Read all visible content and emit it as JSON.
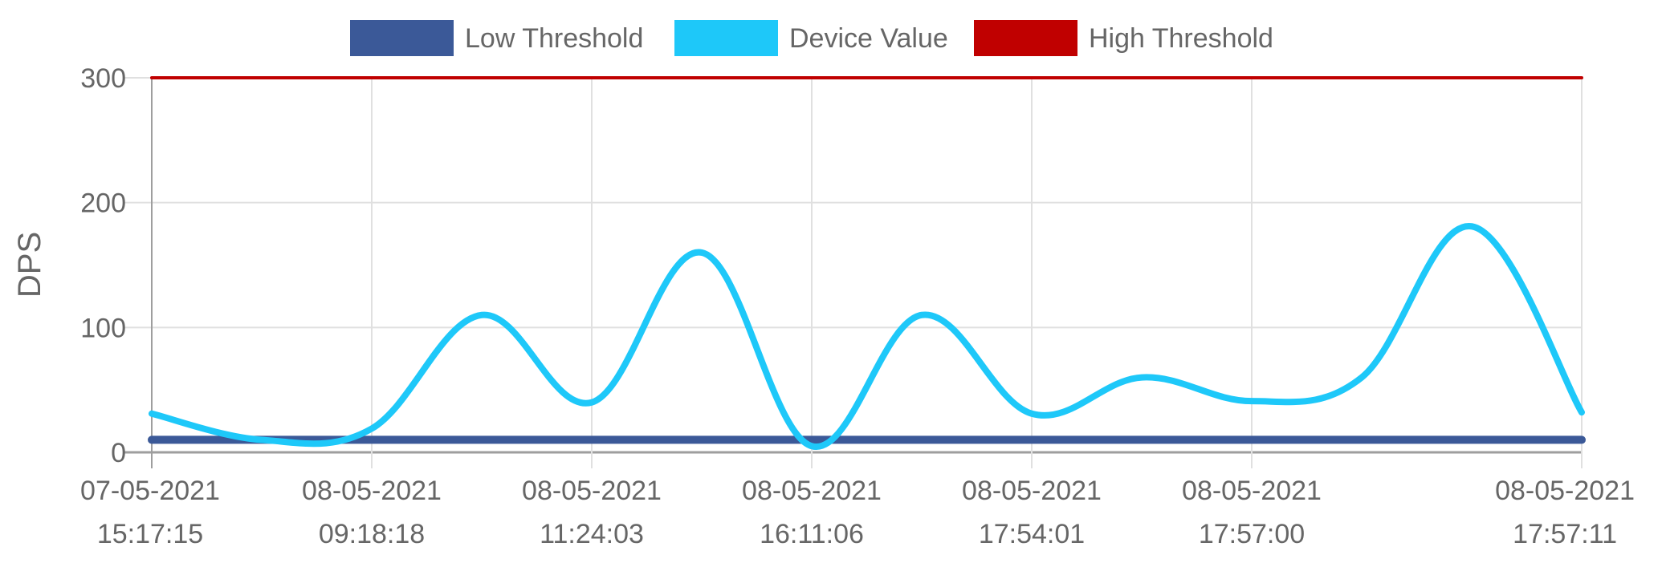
{
  "chart_data": {
    "type": "line",
    "ylabel": "DPS",
    "ylim": [
      0,
      300
    ],
    "yticks": [
      0,
      100,
      200,
      300
    ],
    "x": [
      "07-05-2021 15:17:15",
      "",
      "08-05-2021 09:18:18",
      "",
      "08-05-2021 11:24:03",
      "",
      "08-05-2021 16:11:06",
      "",
      "08-05-2021 17:54:01",
      "",
      "08-05-2021 17:57:00",
      "",
      "",
      "08-05-2021 17:57:11"
    ],
    "xtick_labels": [
      {
        "date": "07-05-2021",
        "time": "15:17:15"
      },
      {
        "date": "08-05-2021",
        "time": "09:18:18"
      },
      {
        "date": "08-05-2021",
        "time": "11:24:03"
      },
      {
        "date": "08-05-2021",
        "time": "16:11:06"
      },
      {
        "date": "08-05-2021",
        "time": "17:54:01"
      },
      {
        "date": "08-05-2021",
        "time": "17:57:00"
      },
      {
        "date": "08-05-2021",
        "time": "17:57:11"
      }
    ],
    "xtick_indices": [
      0,
      2,
      4,
      6,
      8,
      10,
      13
    ],
    "legend_position": "top",
    "grid": true,
    "series": [
      {
        "name": "Low Threshold",
        "color": "#3b5998",
        "values": [
          10,
          10,
          10,
          10,
          10,
          10,
          10,
          10,
          10,
          10,
          10,
          10,
          10,
          10
        ]
      },
      {
        "name": "Device Value",
        "color": "#1ec8f9",
        "values": [
          31,
          10,
          19,
          110,
          40,
          160,
          5,
          110,
          31,
          60,
          41,
          60,
          181,
          32
        ]
      },
      {
        "name": "High Threshold",
        "color": "#c00000",
        "values": [
          300,
          300,
          300,
          300,
          300,
          300,
          300,
          300,
          300,
          300,
          300,
          300,
          300,
          300
        ]
      }
    ]
  }
}
